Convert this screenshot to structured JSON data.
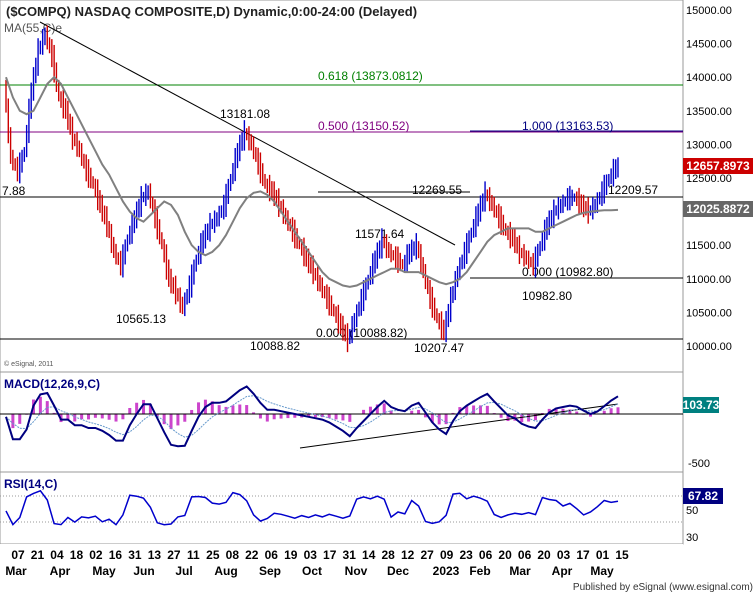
{
  "title": "($COMPQ) NASDAQ COMPOSITE,D) Dynamic,0:00-24:00 (Delayed)",
  "ma_label": "MA(55,C)e",
  "copyright": "© eSignal, 2011",
  "published_by": "Published by eSignal (www.esignal.com)",
  "price_panel": {
    "y_ticks": [
      "15000.00",
      "14500.00",
      "14000.00",
      "13500.00",
      "13000.00",
      "12500.00",
      "12000.00",
      "11500.00",
      "11000.00",
      "10500.00",
      "10000.00"
    ],
    "last_price": "12657.8973",
    "ma_value": "12025.8872",
    "left_cut_label": "7.88",
    "fib_levels": [
      {
        "label": "0.618 (13873.0812)",
        "value": 13873.0812,
        "color": "#008000"
      },
      {
        "label": "0.500 (13150.52)",
        "value": 13150.52,
        "color": "#800080"
      },
      {
        "label": "0.000 (10088.82)",
        "value": 10088.82,
        "color": "#000000"
      },
      {
        "label": "1.000 (13163.53)",
        "value": 13163.53,
        "color": "#000080"
      },
      {
        "label": "0.000 (10982.80)",
        "value": 10982.8,
        "color": "#000000"
      }
    ],
    "annotations": [
      {
        "label": "13181.08",
        "value": 13181.08
      },
      {
        "label": "12269.55",
        "value": 12269.55
      },
      {
        "label": "11571.64",
        "value": 11571.64
      },
      {
        "label": "12209.57",
        "value": 12209.57
      },
      {
        "label": "10565.13",
        "value": 10565.13
      },
      {
        "label": "10088.82",
        "value": 10088.82
      },
      {
        "label": "10207.47",
        "value": 10207.47
      },
      {
        "label": "10982.80",
        "value": 10982.8
      }
    ]
  },
  "macd_panel": {
    "label": "MACD(12,26,9,C)",
    "y_ticks": [
      "-500"
    ],
    "last_value": "103.73"
  },
  "rsi_panel": {
    "label": "RSI(14,C)",
    "y_ticks": [
      "50",
      "30"
    ],
    "last_value": "67.82"
  },
  "x_axis": {
    "day_labels": [
      "07",
      "21",
      "04",
      "18",
      "02",
      "16",
      "31",
      "13",
      "27",
      "11",
      "25",
      "08",
      "22",
      "06",
      "19",
      "03",
      "17",
      "31",
      "14",
      "28",
      "12",
      "27",
      "09",
      "23",
      "06",
      "20",
      "06",
      "20",
      "03",
      "17",
      "01",
      "15"
    ],
    "month_labels": [
      "Mar",
      "Apr",
      "May",
      "Jun",
      "Jul",
      "Aug",
      "Sep",
      "Oct",
      "Nov",
      "Dec",
      "2023",
      "Feb",
      "Mar",
      "Apr",
      "May"
    ]
  },
  "colors": {
    "up_bar": "#0000cc",
    "down_bar": "#cc0000",
    "ma_line": "#808080",
    "macd_line": "#000080",
    "macd_hist": "#cc44cc",
    "rsi_line": "#0000cc",
    "price_badge": "#cc0000",
    "ma_badge": "#666666",
    "macd_badge": "#008080",
    "rsi_badge": "#000080"
  },
  "chart_data": {
    "type": "line",
    "series": [
      {
        "values": [
          13900,
          12800,
          12600,
          12900,
          13800,
          14400,
          14650,
          14300,
          13700,
          13500,
          13100,
          12900,
          12600,
          12400,
          12100,
          11800,
          11400,
          11200,
          11600,
          11900,
          12200,
          12300,
          11900,
          11500,
          11000,
          10800,
          10565.13,
          10900,
          11300,
          11600,
          11800,
          11900,
          12100,
          12500,
          12900,
          13181.08,
          13000,
          12700,
          12400,
          12300,
          12100,
          11900,
          11700,
          11500,
          11300,
          11100,
          10900,
          10700,
          10500,
          10300,
          10088.82,
          10400,
          10700,
          11000,
          11300,
          11571.64,
          11400,
          11300,
          11200,
          11400,
          11500,
          11100,
          10700,
          10400,
          10207.47,
          10700,
          11100,
          11400,
          11700,
          12000,
          12269.55,
          12100,
          11900,
          11700,
          11600,
          11400,
          11300,
          11200,
          11500,
          11800,
          12000,
          12100,
          12200,
          12209.57,
          12100,
          12000,
          12100,
          12300,
          12500,
          12657.8973
        ]
      },
      {
        "values": [
          14000,
          13700,
          13500,
          13450,
          13500,
          13700,
          13900,
          14000,
          13900,
          13700,
          13500,
          13300,
          13100,
          12900,
          12700,
          12550,
          12350,
          12150,
          12000,
          11900,
          11850,
          11950,
          12050,
          12150,
          12100,
          11950,
          11700,
          11500,
          11400,
          11350,
          11400,
          11500,
          11650,
          11850,
          12050,
          12200,
          12280,
          12300,
          12250,
          12150,
          12000,
          11850,
          11700,
          11550,
          11400,
          11250,
          11100,
          11000,
          10950,
          10900,
          10880,
          10900,
          10950,
          11000,
          11050,
          11100,
          11150,
          11150,
          11100,
          11100,
          11100,
          11050,
          11000,
          10950,
          10920,
          10950,
          11000,
          11100,
          11250,
          11400,
          11550,
          11650,
          11700,
          11750,
          11750,
          11750,
          11750,
          11700,
          11700,
          11750,
          11800,
          11850,
          11900,
          11950,
          11980,
          12000,
          12010,
          12020,
          12020,
          12025.8872
        ]
      }
    ],
    "ylim": [
      10000,
      15000
    ]
  }
}
